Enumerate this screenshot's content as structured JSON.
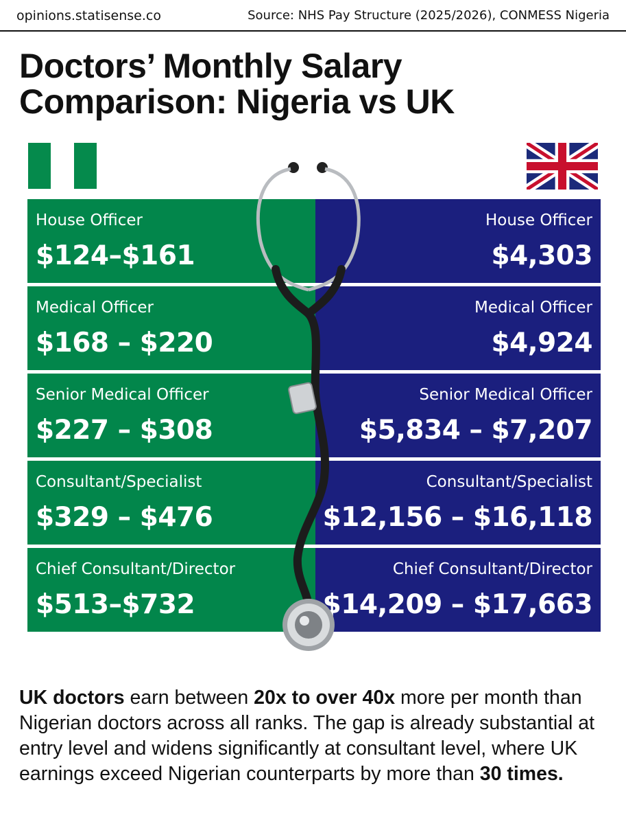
{
  "header": {
    "site": "opinions.statisense.co",
    "source": "Source: NHS Pay Structure (2025/2026), CONMESS Nigeria"
  },
  "title": {
    "line1": "Doctors’ Monthly Salary",
    "line2": "Comparison: Nigeria vs UK"
  },
  "flags": {
    "nigeria": {
      "colors": [
        "#058a4c",
        "#ffffff",
        "#058a4c"
      ]
    },
    "uk": {
      "blue": "#1b2a7a",
      "red": "#c8102e",
      "white": "#ffffff"
    }
  },
  "colors": {
    "nigeria_panel": "#02864b",
    "uk_panel": "#1b1f7e"
  },
  "nigeria": [
    {
      "rank": "House Officer",
      "amount": "$124–$161"
    },
    {
      "rank": "Medical Officer",
      "amount": "$168 – $220"
    },
    {
      "rank": "Senior Medical Officer",
      "amount": "$227 – $308"
    },
    {
      "rank": "Consultant/Specialist",
      "amount": "$329 – $476"
    },
    {
      "rank": "Chief Consultant/Director",
      "amount": "$513–$732"
    }
  ],
  "uk": [
    {
      "rank": "House Officer",
      "amount": "$4,303"
    },
    {
      "rank": "Medical Officer",
      "amount": "$4,924"
    },
    {
      "rank": "Senior Medical Officer",
      "amount": "$5,834 – $7,207"
    },
    {
      "rank": "Consultant/Specialist",
      "amount": "$12,156 – $16,118"
    },
    {
      "rank": "Chief Consultant/Director",
      "amount": "$14,209 – $17,663"
    }
  ],
  "summary": {
    "s1": "UK doctors",
    "s2": " earn between ",
    "s3": "20x to over 40x",
    "s4": " more per month than Nigerian doctors across all ranks. The gap is already substantial at entry level and widens significantly at consultant level, where UK earnings exceed Nigerian counterparts by more than ",
    "s5": "30 times."
  }
}
